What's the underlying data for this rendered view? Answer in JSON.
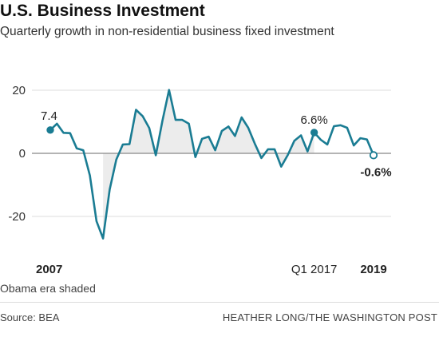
{
  "header": {
    "title": "U.S. Business Investment",
    "subtitle": "Quarterly growth in non-residential business fixed investment"
  },
  "footer": {
    "note": "Obama era shaded",
    "source": "Source: BEA",
    "credit": "HEATHER LONG/THE WASHINGTON POST"
  },
  "colors": {
    "line": "#1a7c93",
    "shade": "#ececec",
    "zero": "#888888",
    "grid": "#dcdcdc"
  },
  "chart_data": {
    "type": "line",
    "title": "U.S. Business Investment",
    "subtitle": "Quarterly growth in non-residential business fixed investment",
    "xlabel": "",
    "ylabel": "",
    "ylim": [
      -27,
      22
    ],
    "yticks": [
      20,
      0,
      -20
    ],
    "ytick_labels": [
      "20",
      "0",
      "-20"
    ],
    "grid": true,
    "series": [
      {
        "values": [
          7.4,
          9.4,
          6.5,
          6.4,
          1.6,
          1.0,
          -7.0,
          -21.5,
          -27.0,
          -11.5,
          -2.0,
          2.8,
          2.9,
          13.8,
          11.8,
          8.0,
          -0.6,
          10.3,
          20.1,
          10.6,
          10.6,
          9.4,
          -1.2,
          4.6,
          5.3,
          1.0,
          7.1,
          8.5,
          5.5,
          11.4,
          8.1,
          3.1,
          -1.5,
          1.3,
          1.3,
          -4.2,
          -0.5,
          4.0,
          5.7,
          0.6,
          6.6,
          4.3,
          2.8,
          8.6,
          8.9,
          8.1,
          2.5,
          4.8,
          4.4,
          -0.6
        ]
      }
    ],
    "shaded_region": {
      "label": "Obama era shaded",
      "start_index": 8,
      "end_index": 40
    },
    "annotations": [
      {
        "index": 0,
        "label": "7.4"
      },
      {
        "index": 40,
        "label": "6.6%"
      },
      {
        "index": 49,
        "label": "-0.6%"
      }
    ],
    "x_labels": [
      {
        "index": 0,
        "text": "2007",
        "bold": true
      },
      {
        "index": 40,
        "text": "Q1 2017",
        "bold": false
      },
      {
        "index": 49,
        "text": "2019",
        "bold": true
      }
    ]
  }
}
